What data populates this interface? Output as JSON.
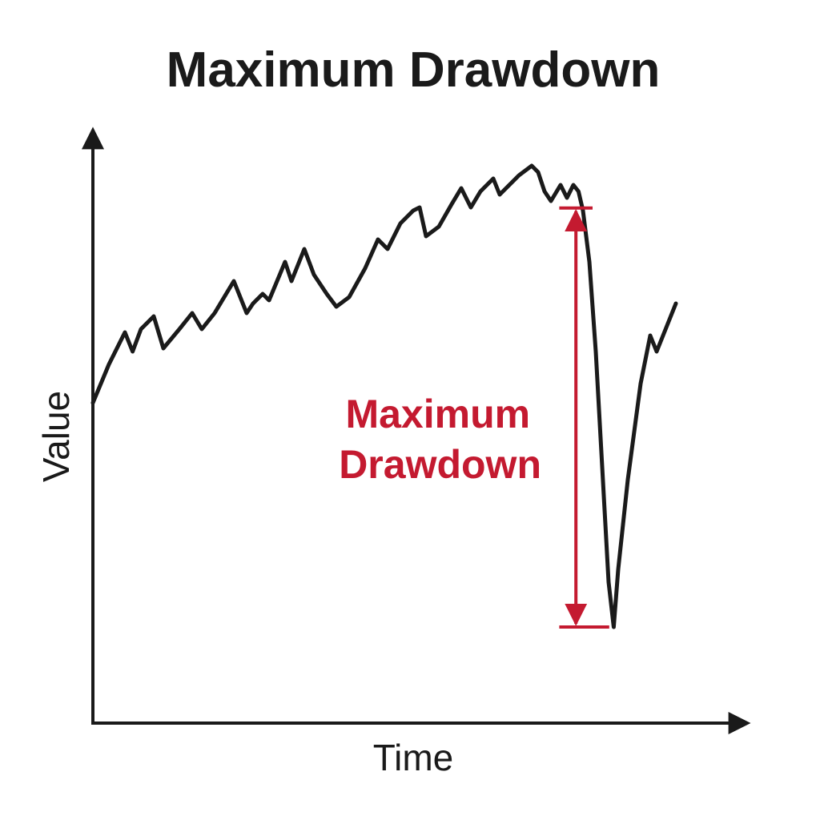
{
  "chart_data": {
    "type": "line",
    "title": "Maximum Drawdown",
    "xlabel": "Time",
    "ylabel": "Value",
    "xlim": [
      0,
      100
    ],
    "ylim": [
      0,
      100
    ],
    "grid": false,
    "legend": "none",
    "series": [
      {
        "points": [
          [
            0,
            50.0
          ],
          [
            2.5,
            56.0
          ],
          [
            5.0,
            61.0
          ],
          [
            6.2,
            58.0
          ],
          [
            7.5,
            61.5
          ],
          [
            9.5,
            63.5
          ],
          [
            11.0,
            58.5
          ],
          [
            13.5,
            61.5
          ],
          [
            15.5,
            64.0
          ],
          [
            17.0,
            61.5
          ],
          [
            19.0,
            64.0
          ],
          [
            22.0,
            69.0
          ],
          [
            24.0,
            64.0
          ],
          [
            25.0,
            65.5
          ],
          [
            26.5,
            67.0
          ],
          [
            27.5,
            66.0
          ],
          [
            30.0,
            72.0
          ],
          [
            31.0,
            69.0
          ],
          [
            33.0,
            74.0
          ],
          [
            34.5,
            70.0
          ],
          [
            36.5,
            67.0
          ],
          [
            38.0,
            65.0
          ],
          [
            40.0,
            66.5
          ],
          [
            42.5,
            71.0
          ],
          [
            44.5,
            75.5
          ],
          [
            46.0,
            74.0
          ],
          [
            48.0,
            78.0
          ],
          [
            50.0,
            80.0
          ],
          [
            51.0,
            80.5
          ],
          [
            52.0,
            76.0
          ],
          [
            54.0,
            77.5
          ],
          [
            56.0,
            81.0
          ],
          [
            57.5,
            83.5
          ],
          [
            59.0,
            80.5
          ],
          [
            60.5,
            83.0
          ],
          [
            62.5,
            85.0
          ],
          [
            63.5,
            82.5
          ],
          [
            65.0,
            84.0
          ],
          [
            66.5,
            85.5
          ],
          [
            68.5,
            87.0
          ],
          [
            69.5,
            86.0
          ],
          [
            70.5,
            83.0
          ],
          [
            71.5,
            81.5
          ],
          [
            73.0,
            84.0
          ],
          [
            74.0,
            82.0
          ],
          [
            75.0,
            84.0
          ],
          [
            75.8,
            83.0
          ],
          [
            76.5,
            80.0
          ],
          [
            77.5,
            72.0
          ],
          [
            78.5,
            58.0
          ],
          [
            79.5,
            40.0
          ],
          [
            80.5,
            22.0
          ],
          [
            81.3,
            15.0
          ],
          [
            82.0,
            24.0
          ],
          [
            83.5,
            38.0
          ],
          [
            85.5,
            53.0
          ],
          [
            87.0,
            60.5
          ],
          [
            88.0,
            58.0
          ],
          [
            90.0,
            63.0
          ],
          [
            91.0,
            65.5
          ]
        ],
        "color": "#1a1a1a"
      }
    ],
    "annotations": [
      {
        "label_lines": [
          "Maximum",
          "Drawdown"
        ],
        "x": 75.4,
        "from_y": 80.4,
        "to_y": 15.0,
        "tick_left": 72.8,
        "top_tick_right": 78.0,
        "bottom_tick_right": 80.6,
        "color": "#c41a30"
      }
    ]
  }
}
